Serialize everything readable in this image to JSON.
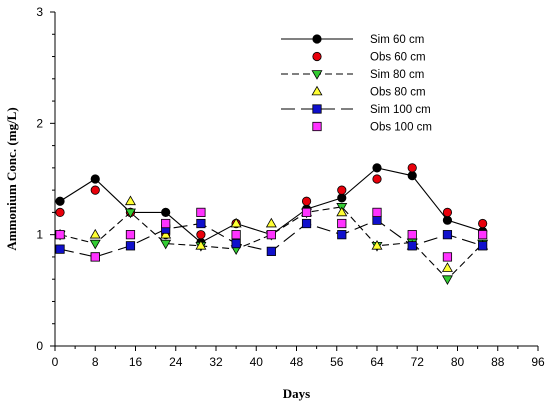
{
  "chart_data": {
    "type": "line",
    "title": "",
    "xlabel": "Days",
    "ylabel": "Ammonium Conc. (mg/L)",
    "xlim": [
      0,
      96
    ],
    "ylim": [
      0,
      3
    ],
    "xticks": [
      "0",
      "8",
      "16",
      "24",
      "32",
      "40",
      "48",
      "56",
      "64",
      "72",
      "80",
      "88",
      "96"
    ],
    "yticks": [
      "0",
      "1",
      "2",
      "3"
    ],
    "grid": false,
    "legend_position": "top-right",
    "series": [
      {
        "name": "Sim 60 cm",
        "kind": "sim",
        "marker": "circle",
        "color": "#000000",
        "dash": "solid",
        "x": [
          1,
          8,
          15,
          22,
          29,
          36,
          43,
          50,
          57,
          64,
          71,
          78,
          85
        ],
        "y": [
          1.3,
          1.5,
          1.2,
          1.2,
          0.93,
          1.1,
          1.0,
          1.23,
          1.33,
          1.6,
          1.53,
          1.13,
          1.03
        ]
      },
      {
        "name": "Obs 60 cm",
        "kind": "obs",
        "marker": "circle",
        "color": "#e8000b",
        "x": [
          1,
          8,
          15,
          22,
          29,
          36,
          43,
          50,
          57,
          64,
          71,
          78,
          85
        ],
        "y": [
          1.2,
          1.4,
          1.2,
          1.0,
          1.0,
          1.1,
          1.0,
          1.3,
          1.4,
          1.5,
          1.6,
          1.2,
          1.1
        ]
      },
      {
        "name": "Sim 80 cm",
        "kind": "sim",
        "marker": "triangle-down",
        "color": "#33cc33",
        "dash": "shortdash",
        "x": [
          1,
          8,
          15,
          22,
          29,
          36,
          43,
          50,
          57,
          64,
          71,
          78,
          85
        ],
        "y": [
          1.0,
          0.92,
          1.2,
          0.92,
          0.9,
          0.87,
          1.0,
          1.2,
          1.25,
          0.9,
          0.93,
          0.6,
          0.92
        ]
      },
      {
        "name": "Obs 80 cm",
        "kind": "obs",
        "marker": "triangle-up",
        "color": "#ffff33",
        "x": [
          1,
          8,
          15,
          22,
          29,
          36,
          43,
          50,
          57,
          64,
          71,
          78,
          85
        ],
        "y": [
          1.0,
          1.0,
          1.3,
          1.0,
          0.9,
          1.1,
          1.1,
          1.2,
          1.2,
          0.9,
          0.9,
          0.7,
          0.9
        ]
      },
      {
        "name": "Sim 100 cm",
        "kind": "sim",
        "marker": "square",
        "color": "#1010cc",
        "dash": "longdash",
        "x": [
          1,
          8,
          15,
          22,
          29,
          36,
          43,
          50,
          57,
          64,
          71,
          78,
          85
        ],
        "y": [
          0.87,
          0.8,
          0.9,
          1.05,
          1.1,
          0.92,
          0.85,
          1.1,
          1.0,
          1.13,
          0.9,
          1.0,
          0.9
        ]
      },
      {
        "name": "Obs 100 cm",
        "kind": "obs",
        "marker": "square",
        "color": "#ff33ff",
        "x": [
          1,
          8,
          15,
          22,
          29,
          36,
          43,
          50,
          57,
          64,
          71,
          78,
          85
        ],
        "y": [
          1.0,
          0.8,
          1.0,
          1.1,
          1.2,
          1.0,
          1.0,
          1.2,
          1.1,
          1.2,
          1.0,
          0.8,
          1.0
        ]
      }
    ]
  }
}
